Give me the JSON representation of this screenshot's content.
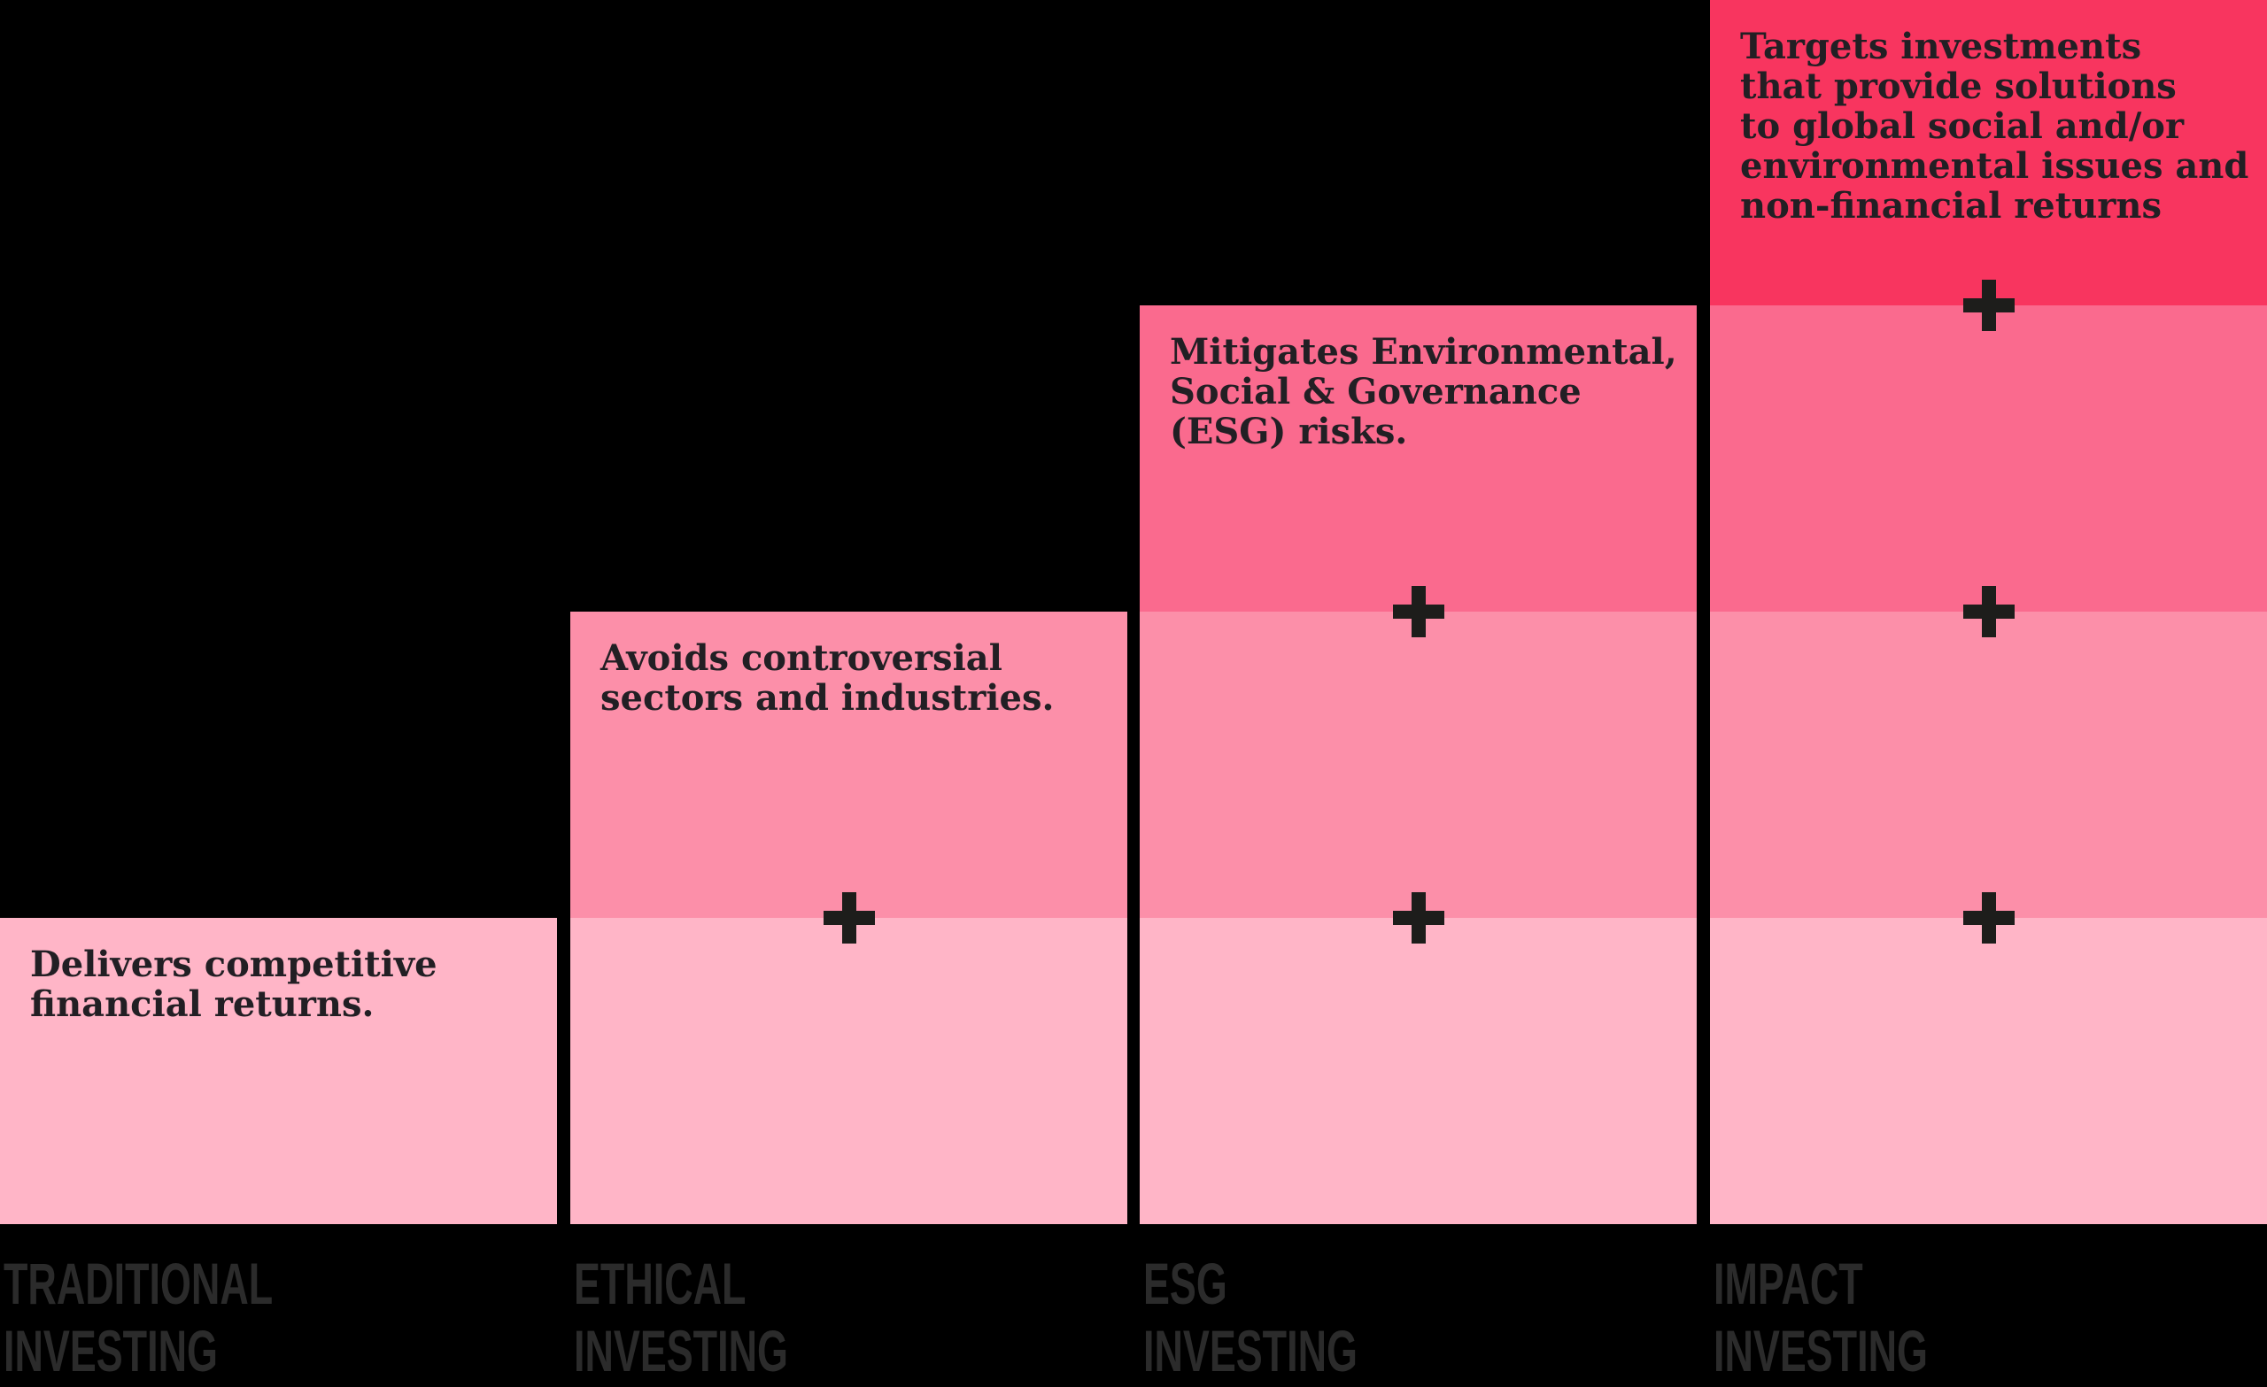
{
  "palette": {
    "background": "#000000",
    "level_colors_bottom_to_top": [
      "#FFB5C7",
      "#FC8FA9",
      "#FA6A8E",
      "#F8355F"
    ],
    "description_text_color": "#221F24",
    "label_text_color": "#2B2B2B",
    "plus_color": "#1D1D1B"
  },
  "plus_symbol": "+",
  "columns": [
    {
      "id": "traditional-investing",
      "label": "TRADITIONAL INVESTING",
      "label_lines": [
        "TRADITIONAL",
        "INVESTING"
      ],
      "levels": 1,
      "plus_count": 0,
      "description": "Delivers competitive financial returns.",
      "description_lines": [
        "Delivers competitive",
        "financial returns."
      ]
    },
    {
      "id": "ethical-investing",
      "label": "ETHICAL INVESTING",
      "label_lines": [
        "ETHICAL",
        "INVESTING"
      ],
      "levels": 2,
      "plus_count": 1,
      "description": "Avoids controversial sectors and industries.",
      "description_lines": [
        "Avoids controversial",
        "sectors and industries."
      ]
    },
    {
      "id": "esg-investing",
      "label": "ESG INVESTING",
      "label_lines": [
        "ESG",
        "INVESTING"
      ],
      "levels": 3,
      "plus_count": 2,
      "description": "Mitigates Environmental, Social & Governance (ESG) risks.",
      "description_lines": [
        "Mitigates Environmental,",
        "Social & Governance",
        "(ESG) risks."
      ]
    },
    {
      "id": "impact-investing",
      "label": "IMPACT INVESTING",
      "label_lines": [
        "IMPACT",
        "INVESTING"
      ],
      "levels": 4,
      "plus_count": 3,
      "description": "Targets investments that provide solutions to global social and/or environmental issues and non-financial returns",
      "description_lines": [
        "Targets investments",
        "that provide solutions",
        "to global social and/or",
        "environmental issues and",
        "non-financial returns"
      ]
    }
  ]
}
